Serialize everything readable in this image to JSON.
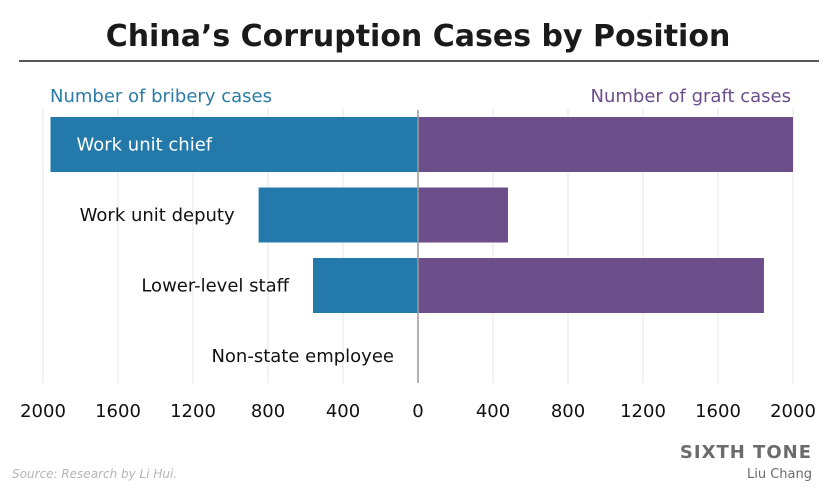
{
  "chart_data": {
    "type": "bar",
    "orientation": "diverging-horizontal",
    "title": "China’s Corruption Cases by Position",
    "left_label": "Number of bribery cases",
    "right_label": "Number of graft cases",
    "categories": [
      "Work unit chief",
      "Work unit deputy",
      "Lower-level staff",
      "Non-state employee"
    ],
    "series": [
      {
        "name": "Number of bribery cases",
        "side": "left",
        "values": [
          1960,
          850,
          560,
          0
        ],
        "color": "#2379a9"
      },
      {
        "name": "Number of graft cases",
        "side": "right",
        "values": [
          2000,
          480,
          1845,
          0
        ],
        "color": "#6b4e8a"
      }
    ],
    "xlim_left": [
      0,
      2000
    ],
    "xlim_right": [
      0,
      2000
    ],
    "x_ticks": [
      "2000",
      "1600",
      "1200",
      "800",
      "400",
      "0",
      "400",
      "800",
      "1200",
      "1600",
      "2000"
    ],
    "grid": true
  },
  "footer": {
    "source": "Source: Research by Li Hui.",
    "brand": "SIXTH TONE",
    "author": "Liu Chang"
  },
  "colors": {
    "bribery": "#2379a9",
    "graft": "#6b4e8a",
    "bribery_label": "#2a7ca8",
    "graft_label": "#6b4e8a"
  }
}
